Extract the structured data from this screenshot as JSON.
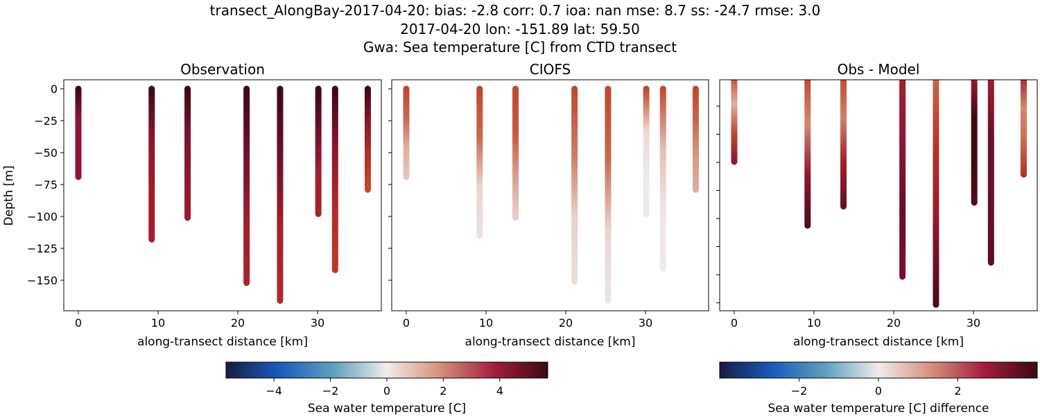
{
  "title_lines": [
    "transect_AlongBay-2017-04-20: bias: -2.8  corr: 0.7  ioa: nan  mse: 8.7  ss: -24.7  rmse: 3.0",
    "2017-04-20 lon: -151.89 lat: 59.50",
    "Gwa: Sea temperature [C] from CTD transect"
  ],
  "chart_data": [
    {
      "type": "scatter",
      "title": "Observation",
      "xlabel": "along-transect distance [km]",
      "ylabel": "Depth [m]",
      "xlim": [
        -2,
        38
      ],
      "ylim": [
        -173,
        7
      ],
      "xticks": [
        0,
        10,
        20,
        30
      ],
      "yticks": [
        0,
        -25,
        -50,
        -75,
        -100,
        -125,
        -150
      ],
      "stations_km": [
        0,
        9.2,
        13.7,
        21.1,
        25.3,
        30.1,
        32.2,
        36.3
      ],
      "max_depth_m": [
        69,
        118,
        101,
        152,
        166,
        98,
        142,
        79
      ],
      "profile_colors": [
        [
          "#3c0912",
          "#8d1530",
          "#8e1530",
          "#8e1530"
        ],
        [
          "#3c0912",
          "#8e1530",
          "#9e1c2c",
          "#a21f2c"
        ],
        [
          "#3c0912",
          "#7a1230",
          "#8e1530",
          "#9c1b2d"
        ],
        [
          "#3c0912",
          "#6e102c",
          "#a01e2c",
          "#a82429"
        ],
        [
          "#3c0912",
          "#6e102c",
          "#a52129",
          "#b02b28"
        ],
        [
          "#3c0912",
          "#6e102c",
          "#a21f2c",
          "#a82429"
        ],
        [
          "#3c0912",
          "#8e1530",
          "#b02b28",
          "#b83a2c"
        ],
        [
          "#3c0912",
          "#8e1530",
          "#b33228",
          "#c0482e"
        ]
      ]
    },
    {
      "type": "scatter",
      "title": "CIOFS",
      "xlabel": "along-transect distance [km]",
      "xlim": [
        -2,
        38
      ],
      "ylim": [
        -173,
        7
      ],
      "xticks": [
        0,
        10,
        20,
        30
      ],
      "stations_km": [
        0,
        9.2,
        13.7,
        21.1,
        25.3,
        30.1,
        32.2,
        36.3
      ],
      "max_depth_m": [
        69,
        115,
        101,
        151,
        166,
        98,
        141,
        79
      ],
      "profile_colors": [
        [
          "#c0482e",
          "#c86a50",
          "#dfae9e",
          "#e6c6bb"
        ],
        [
          "#c0482e",
          "#c86a50",
          "#e7d6d0",
          "#ece2df"
        ],
        [
          "#c0482e",
          "#c5583c",
          "#d99c88",
          "#e8d4cc"
        ],
        [
          "#c0482e",
          "#cc7a62",
          "#e6d2ca",
          "#ebdfda"
        ],
        [
          "#c0482e",
          "#c86a50",
          "#e7d6d0",
          "#ece6e6"
        ],
        [
          "#c0482e",
          "#ead8d2",
          "#efe8e8",
          "#efeaea"
        ],
        [
          "#c0482e",
          "#e2bfb2",
          "#eee6e6",
          "#efeaea"
        ],
        [
          "#c0482e",
          "#c86a50",
          "#d8977f",
          "#dfae9e"
        ]
      ]
    },
    {
      "type": "scatter",
      "title": "Obs - Model",
      "xlabel": "along-transect distance [km]",
      "xlim": [
        -2,
        38
      ],
      "xticks": [
        0,
        10,
        20,
        30
      ],
      "stations_km": [
        0,
        9.2,
        13.7,
        21.1,
        25.3,
        30.1,
        32.2,
        36.3
      ],
      "max_depth_m": [
        68,
        118,
        103,
        158,
        180,
        100,
        147,
        78
      ],
      "profile_colors": [
        [
          "#c0482e",
          "#dfae9e",
          "#c0482e",
          "#8e1530"
        ],
        [
          "#c0482e",
          "#d4866c",
          "#8e1530",
          "#4a0b1a"
        ],
        [
          "#c0482e",
          "#d08068",
          "#a21f2c",
          "#6a0f28"
        ],
        [
          "#a21f2c",
          "#8e1530",
          "#6a0f28",
          "#7a1230"
        ],
        [
          "#c86a50",
          "#b33228",
          "#8e1530",
          "#4a0b1a"
        ],
        [
          "#a21f2c",
          "#3c0912",
          "#3c0912",
          "#4a0b1a"
        ],
        [
          "#a21f2c",
          "#6a0f28",
          "#6a0f28",
          "#5a0d22"
        ],
        [
          "#a21f2c",
          "#d08a72",
          "#c86a50",
          "#b33228"
        ]
      ]
    }
  ],
  "colorbars": [
    {
      "label": "Sea water temperature [C]",
      "range": [
        -5.7,
        5.7
      ],
      "ticks": [
        "−4",
        "−2",
        "0",
        "2",
        "4"
      ],
      "tick_values": [
        -4,
        -2,
        0,
        2,
        4
      ]
    },
    {
      "label": "Sea water temperature [C] difference",
      "range": [
        -4,
        4
      ],
      "ticks": [
        "−2",
        "0",
        "2"
      ],
      "tick_values": [
        -2,
        0,
        2
      ]
    }
  ],
  "colormap": [
    "#181c43",
    "#1a5bbd",
    "#5fa0bd",
    "#f0ecec",
    "#d4907a",
    "#a31d3f",
    "#3c0912"
  ]
}
